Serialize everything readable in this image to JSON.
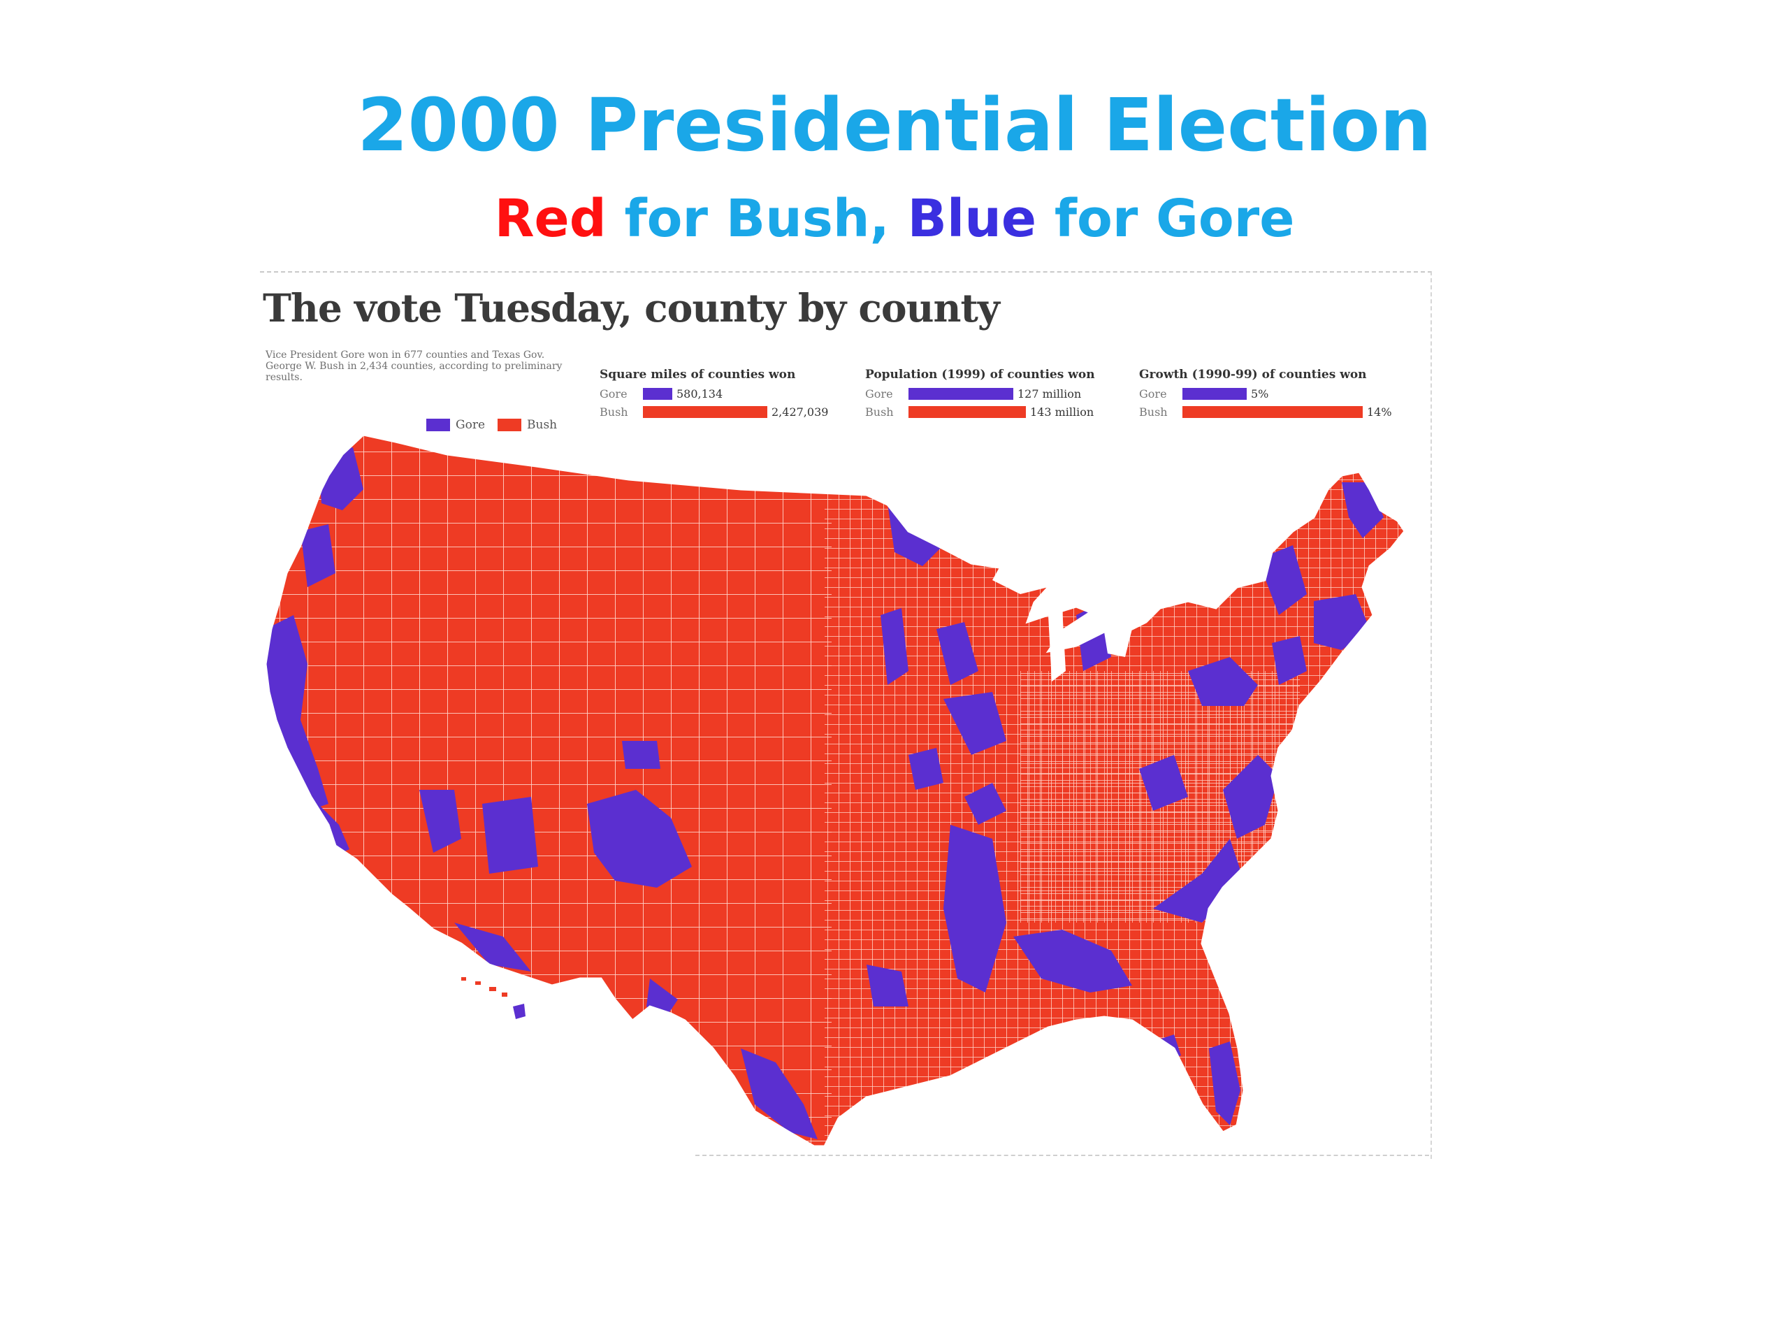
{
  "colors": {
    "title": "#1aa7e8",
    "bush": "#ee3b24",
    "gore": "#5b2fd0",
    "subtitle_red": "#ff1010",
    "subtitle_blue": "#3a2fe0",
    "subtitle_text": "#1aa7e8",
    "county_line": "#ffd9cf"
  },
  "slide": {
    "title": "2000 Presidential Election",
    "subtitle_red": "Red",
    "subtitle_mid": " for Bush, ",
    "subtitle_blue": "Blue",
    "subtitle_end": " for Gore"
  },
  "clipping": {
    "headline": "The vote Tuesday, county by county",
    "intro": "Vice President Gore won in 677 counties and Texas Gov. George W. Bush in 2,434 counties, according to preliminary results.",
    "legend_gore": "Gore",
    "legend_bush": "Bush",
    "stats": [
      {
        "title": "Square miles of counties won",
        "gore_label": "Gore",
        "gore_value": "580,134",
        "gore_amount": 580134,
        "bush_label": "Bush",
        "bush_value": "2,427,039",
        "bush_amount": 2427039
      },
      {
        "title": "Population (1999) of counties won",
        "gore_label": "Gore",
        "gore_value": "127 million",
        "gore_amount": 127,
        "bush_label": "Bush",
        "bush_value": "143 million",
        "bush_amount": 143
      },
      {
        "title": "Growth (1990-99) of counties won",
        "gore_label": "Gore",
        "gore_value": "5%",
        "gore_amount": 5,
        "bush_label": "Bush",
        "bush_value": "14%",
        "bush_amount": 14
      }
    ]
  }
}
